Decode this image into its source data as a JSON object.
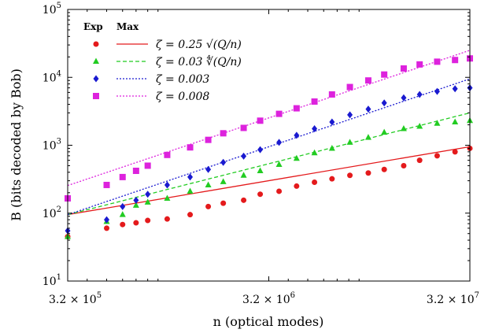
{
  "chart_data": {
    "type": "scatter",
    "xlabel": "n (optical modes)",
    "ylabel": "B (bits decoded by Bob)",
    "x_scale": "log",
    "y_scale": "log",
    "xlim": [
      320000,
      32000000
    ],
    "ylim": [
      10,
      100000
    ],
    "x_ticks": [
      {
        "value": 320000,
        "label": "3.2 × 10^5"
      },
      {
        "value": 3200000,
        "label": "3.2 × 10^6"
      },
      {
        "value": 32000000,
        "label": "3.2 × 10^7"
      }
    ],
    "y_ticks": [
      {
        "value": 10,
        "label": "10^1"
      },
      {
        "value": 100,
        "label": "10^2"
      },
      {
        "value": 1000,
        "label": "10^3"
      },
      {
        "value": 10000,
        "label": "10^4"
      },
      {
        "value": 100000,
        "label": "10^5"
      }
    ],
    "legend": {
      "position": "top-left",
      "header_exp": "Exp",
      "header_max": "Max"
    },
    "series": [
      {
        "name": "ζ = 0.25 √(Q/n)",
        "color": "#e41a1c",
        "marker": "circle",
        "line_style": "solid",
        "line": {
          "x": [
            320000,
            32000000
          ],
          "y": [
            95,
            950
          ]
        },
        "points": {
          "x": [
            320000,
            500000,
            600000,
            700000,
            800000,
            1000000,
            1300000,
            1600000,
            1900000,
            2400000,
            2900000,
            3600000,
            4400000,
            5400000,
            6600000,
            8100000,
            10000000,
            12000000,
            15000000,
            18000000,
            22000000,
            27000000,
            32000000
          ],
          "y": [
            45,
            60,
            68,
            72,
            78,
            82,
            95,
            125,
            140,
            155,
            190,
            210,
            250,
            285,
            320,
            360,
            390,
            440,
            500,
            600,
            700,
            800,
            900
          ]
        }
      },
      {
        "name": "ζ = 0.03 ∜(Q/n)",
        "color": "#22cc22",
        "marker": "triangle",
        "line_style": "dashed",
        "line": {
          "x": [
            320000,
            32000000
          ],
          "y": [
            95,
            3000
          ]
        },
        "points": {
          "x": [
            320000,
            500000,
            600000,
            700000,
            800000,
            1000000,
            1300000,
            1600000,
            1900000,
            2400000,
            2900000,
            3600000,
            4400000,
            5400000,
            6600000,
            8100000,
            10000000,
            12000000,
            15000000,
            18000000,
            22000000,
            27000000,
            32000000
          ],
          "y": [
            45,
            75,
            95,
            130,
            145,
            165,
            210,
            260,
            290,
            360,
            420,
            520,
            640,
            770,
            900,
            1100,
            1300,
            1550,
            1750,
            1900,
            2100,
            2200,
            2300
          ]
        }
      },
      {
        "name": "ζ = 0.003",
        "color": "#1a1ad0",
        "marker": "diamond",
        "line_style": "dotted",
        "line": {
          "x": [
            320000,
            32000000
          ],
          "y": [
            95,
            9500
          ]
        },
        "points": {
          "x": [
            320000,
            500000,
            600000,
            700000,
            800000,
            1000000,
            1300000,
            1600000,
            1900000,
            2400000,
            2900000,
            3600000,
            4400000,
            5400000,
            6600000,
            8100000,
            10000000,
            12000000,
            15000000,
            18000000,
            22000000,
            27000000,
            32000000
          ],
          "y": [
            55,
            80,
            125,
            155,
            190,
            260,
            340,
            440,
            560,
            690,
            860,
            1100,
            1400,
            1750,
            2200,
            2800,
            3400,
            4200,
            5000,
            5600,
            6200,
            6800,
            7000
          ]
        }
      },
      {
        "name": "ζ = 0.008",
        "color": "#dd22dd",
        "marker": "square",
        "line_style": "dotted",
        "line": {
          "x": [
            320000,
            32000000
          ],
          "y": [
            255,
            25000
          ]
        },
        "points": {
          "x": [
            320000,
            500000,
            600000,
            700000,
            800000,
            1000000,
            1300000,
            1600000,
            1900000,
            2400000,
            2900000,
            3600000,
            4400000,
            5400000,
            6600000,
            8100000,
            10000000,
            12000000,
            15000000,
            18000000,
            22000000,
            27000000,
            32000000
          ],
          "y": [
            165,
            260,
            340,
            420,
            500,
            720,
            930,
            1200,
            1500,
            1800,
            2300,
            2900,
            3500,
            4400,
            5600,
            7200,
            9000,
            11000,
            13500,
            15500,
            17000,
            18000,
            19000
          ]
        }
      }
    ]
  }
}
